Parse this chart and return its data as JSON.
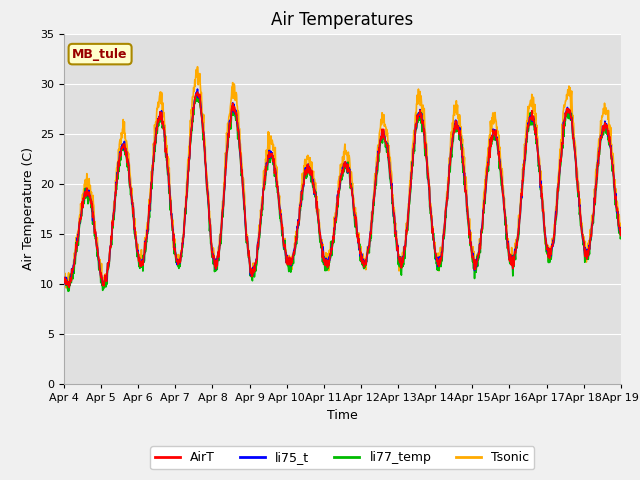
{
  "title": "Air Temperatures",
  "xlabel": "Time",
  "ylabel": "Air Temperature (C)",
  "ylim": [
    0,
    35
  ],
  "yticks": [
    0,
    5,
    10,
    15,
    20,
    25,
    30,
    35
  ],
  "n_days": 15,
  "colors": {
    "AirT": "#ff0000",
    "li75_t": "#0000ff",
    "li77_temp": "#00bb00",
    "Tsonic": "#ffaa00"
  },
  "annotation_text": "MB_tule",
  "annotation_color": "#990000",
  "annotation_bg": "#ffffcc",
  "annotation_border": "#aa8800",
  "fig_bg": "#f0f0f0",
  "plot_bg": "#e0e0e0",
  "grid_color": "#ffffff",
  "title_fontsize": 12,
  "axis_label_fontsize": 9,
  "tick_fontsize": 8,
  "linewidth": 1.2,
  "x_tick_labels": [
    "Apr 4",
    "Apr 5",
    "Apr 6",
    "Apr 7",
    "Apr 8",
    "Apr 9",
    "Apr 10",
    "Apr 11",
    "Apr 12",
    "Apr 13",
    "Apr 14",
    "Apr 15",
    "Apr 16",
    "Apr 17",
    "Apr 18",
    "Apr 19"
  ]
}
